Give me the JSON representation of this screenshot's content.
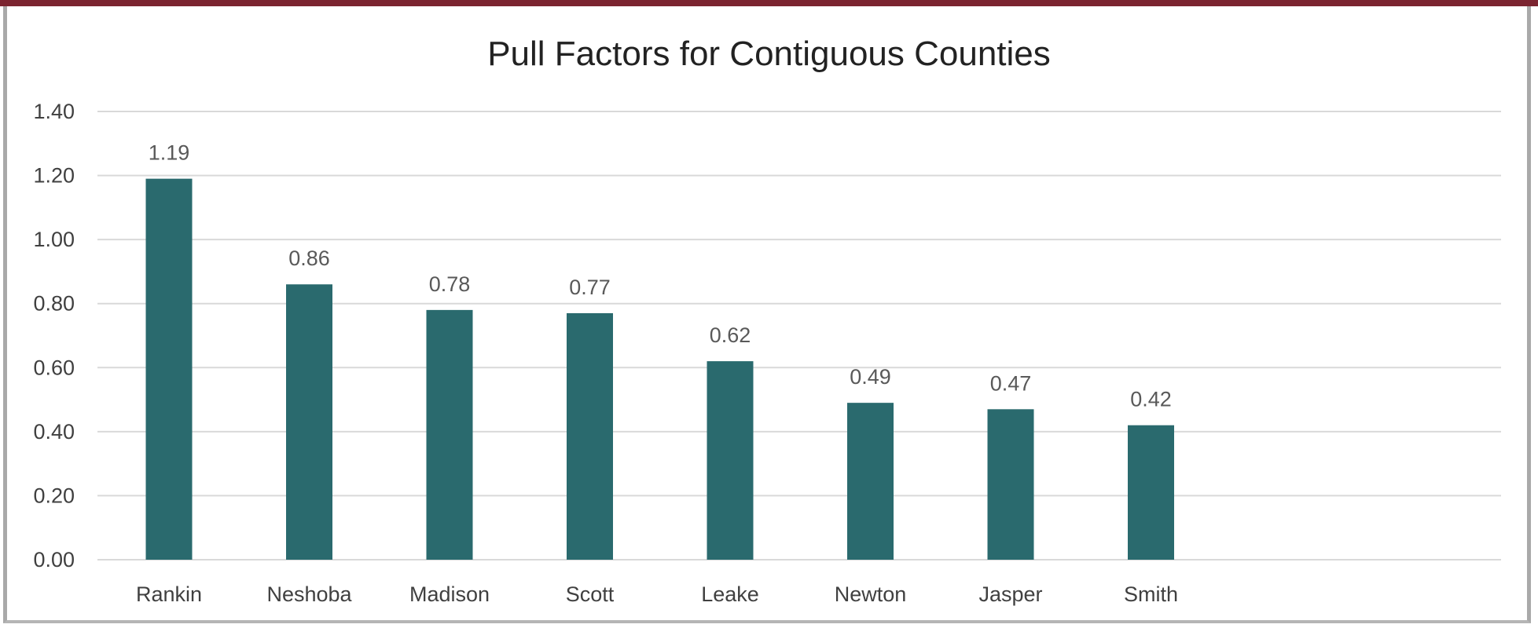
{
  "chart_data": {
    "type": "bar",
    "title": "Pull Factors for Contiguous Counties",
    "xlabel": "",
    "ylabel": "",
    "categories": [
      "Rankin",
      "Neshoba",
      "Madison",
      "Scott",
      "Leake",
      "Newton",
      "Jasper",
      "Smith"
    ],
    "values": [
      1.19,
      0.86,
      0.78,
      0.77,
      0.62,
      0.49,
      0.47,
      0.42
    ],
    "data_labels": [
      "1.19",
      "0.86",
      "0.78",
      "0.77",
      "0.62",
      "0.49",
      "0.47",
      "0.42"
    ],
    "ylim": [
      0,
      1.4
    ],
    "yticks": [
      "0.00",
      "0.20",
      "0.40",
      "0.60",
      "0.80",
      "1.00",
      "1.20",
      "1.40"
    ],
    "grid": true,
    "legend": "none",
    "bar_color": "#2a6a6e",
    "frame_accent_color": "#7b2430"
  }
}
